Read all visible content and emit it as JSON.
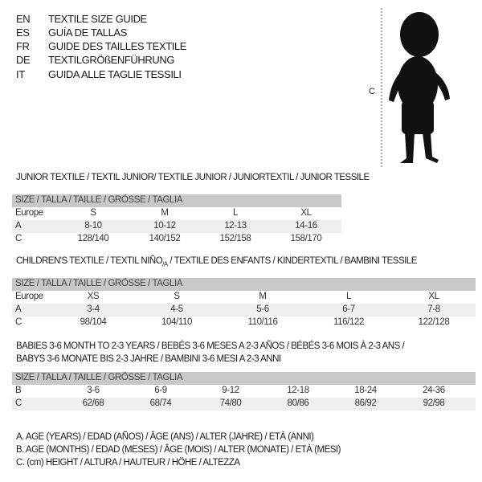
{
  "header": [
    {
      "code": "EN",
      "text": "TEXTILE SIZE GUIDE"
    },
    {
      "code": "ES",
      "text": "GUÍA DE TALLAS"
    },
    {
      "code": "FR",
      "text": "GUIDE DES TAILLES TEXTILE"
    },
    {
      "code": "DE",
      "text": "TEXTILGRÖßENFÜHRUNG"
    },
    {
      "code": "IT",
      "text": "GUIDA ALLE TAGLIE TESSILI"
    }
  ],
  "figure": {
    "label": "C"
  },
  "junior": {
    "title": "JUNIOR TEXTILE / TEXTIL JUNIOR/ TEXTILE JUNIOR / JUNIORTEXTIL / JUNIOR TESSILE",
    "header": "SIZE / TALLA / TAILLE / GRÖSSE / TAGLIA",
    "rows": [
      {
        "label": "Europe",
        "values": [
          "S",
          "M",
          "L",
          "XL"
        ]
      },
      {
        "label": "A",
        "values": [
          "8-10",
          "10-12",
          "12-13",
          "14-16"
        ]
      },
      {
        "label": "C",
        "values": [
          "128/140",
          "140/152",
          "152/158",
          "158/170"
        ]
      }
    ]
  },
  "children": {
    "title": "CHILDREN'S TEXTILE / TEXTIL NIÑO",
    "title_sub": "/A",
    "title_rest": " / TEXTILE DES ENFANTS / KINDERTEXTIL / BAMBINI TESSILE",
    "header": "SIZE / TALLA / TAILLE / GRÖSSE / TAGLIA",
    "rows": [
      {
        "label": "Europe",
        "values": [
          "XS",
          "S",
          "M",
          "L",
          "XL"
        ]
      },
      {
        "label": "A",
        "values": [
          "3-4",
          "4-5",
          "5-6",
          "6-7",
          "7-8"
        ]
      },
      {
        "label": "C",
        "values": [
          "98/104",
          "104/110",
          "110/116",
          "116/122",
          "122/128"
        ]
      }
    ]
  },
  "babies": {
    "title_line1": "BABIES 3-6 MONTH TO 2-3 YEARS / BEBÉS 3-6 MESES A 2-3 AÑOS / BÉBÉS 3-6 MOIS À 2-3 ANS /",
    "title_line2": "BABYS 3-6 MONATE BIS 2-3 JAHRE / BAMBINI 3-6 MESI A 2-3 ANNI",
    "header": "SIZE / TALLA / TAILLE / GRÖSSE / TAGLIA",
    "rows": [
      {
        "label": "B",
        "values": [
          "3-6",
          "6-9",
          "9-12",
          "12-18",
          "18-24",
          "24-36"
        ]
      },
      {
        "label": "C",
        "values": [
          "62/68",
          "68/74",
          "74/80",
          "80/86",
          "86/92",
          "92/98"
        ]
      }
    ]
  },
  "legend": [
    "A. AGE (YEARS) / EDAD (AÑOS) / ÂGE (ANS) / ALTER (JAHRE) / ETÀ (ANNI)",
    "B. AGE (MONTHS) / EDAD (MESES) / ÂGE (MOIS) / ALTER (MONATE) / ETÀ (MESI)",
    "C. (cm) HEIGHT / ALTURA / HAUTEUR / HÖHE / ALTEZZA"
  ]
}
